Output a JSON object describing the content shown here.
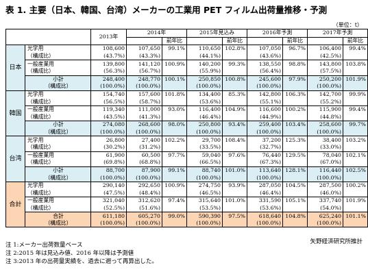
{
  "title": "表 1. 主要（日本、韓国、台湾）メーカーの工業用 PET フィルム出荷量推移・予測",
  "unit": "（単位：t）",
  "columns": {
    "years": [
      "2013年",
      "2014年",
      "2015年見込み",
      "2016年予測",
      "2017年予測"
    ],
    "ratio_label": "前年比"
  },
  "groups": [
    {
      "name": "日本",
      "items": [
        {
          "label": "光学用",
          "share_label": "（構成比）",
          "values": [
            "108,600",
            "107,650",
            "99.1%",
            "110,650",
            "102.8%",
            "107,050",
            "96.7%",
            "106,400",
            "99.4%"
          ],
          "shares": [
            "(43.7%)",
            "(43.3%)",
            "(44.1%)",
            "(43.6%)",
            "(42.5%)"
          ]
        },
        {
          "label": "一般産業用",
          "share_label": "（構成比）",
          "values": [
            "139,800",
            "141,120",
            "100.9%",
            "140,200",
            "99.3%",
            "138,550",
            "98.8%",
            "143,800",
            "103.8%"
          ],
          "shares": [
            "(56.3%)",
            "(56.7%)",
            "(55.9%)",
            "(56.4%)",
            "(57.5%)"
          ]
        },
        {
          "label": "小計",
          "share_label": "（構成比）",
          "values": [
            "248,400",
            "248,770",
            "100.1%",
            "250,850",
            "100.8%",
            "245,600",
            "97.9%",
            "250,200",
            "101.9%"
          ],
          "shares": [
            "(100.0%)",
            "(100.0%)",
            "(100.0%)",
            "(100.0%)",
            "(100.0%)"
          ]
        }
      ]
    },
    {
      "name": "韓国",
      "items": [
        {
          "label": "光学用",
          "share_label": "（構成比）",
          "values": [
            "154,740",
            "157,600",
            "101.8%",
            "134,400",
            "85.3%",
            "142,800",
            "106.3%",
            "142,700",
            "99.9%"
          ],
          "shares": [
            "(56.5%)",
            "(58.7%)",
            "(53.6%)",
            "(55.1%)",
            "(55.2%)"
          ]
        },
        {
          "label": "一般産業用",
          "share_label": "（構成比）",
          "values": [
            "119,340",
            "111,000",
            "93.0%",
            "116,400",
            "104.9%",
            "116,600",
            "100.2%",
            "115,900",
            "99.4%"
          ],
          "shares": [
            "(43.5%)",
            "(41.3%)",
            "(46.4%)",
            "(44.9%)",
            "(44.8%)"
          ]
        },
        {
          "label": "小計",
          "share_label": "（構成比）",
          "values": [
            "274,080",
            "268,600",
            "98.0%",
            "250,800",
            "93.4%",
            "259,400",
            "103.4%",
            "258,600",
            "99.7%"
          ],
          "shares": [
            "(100.0%)",
            "(100.0%)",
            "(100.0%)",
            "(100.0%)",
            "(100.0%)"
          ]
        }
      ]
    },
    {
      "name": "台湾",
      "items": [
        {
          "label": "光学用",
          "share_label": "（構成比）",
          "values": [
            "26,800",
            "27,400",
            "102.2%",
            "29,700",
            "108.4%",
            "37,200",
            "125.3%",
            "38,400",
            "103.2%"
          ],
          "shares": [
            "(30.2%)",
            "(31.2%)",
            "(33.5%)",
            "(32.7%)",
            "(33.0%)"
          ]
        },
        {
          "label": "一般産業用",
          "share_label": "（構成比）",
          "values": [
            "61,900",
            "60,500",
            "97.7%",
            "59,040",
            "97.6%",
            "76,440",
            "129.5%",
            "78,040",
            "102.1%"
          ],
          "shares": [
            "(69.8%)",
            "(68.8%)",
            "(66.5%)",
            "(67.3%)",
            "(67.0%)"
          ]
        },
        {
          "label": "小計",
          "share_label": "（構成比）",
          "values": [
            "88,700",
            "87,900",
            "99.1%",
            "88,740",
            "101.0%",
            "113,640",
            "128.1%",
            "116,440",
            "102.5%"
          ],
          "shares": [
            "(100.0%)",
            "(100.0%)",
            "(100.0%)",
            "(100.0%)",
            "(100.0%)"
          ]
        }
      ]
    },
    {
      "name": "合計",
      "items": [
        {
          "label": "光学用",
          "share_label": "（構成比）",
          "values": [
            "290,140",
            "292,650",
            "100.9%",
            "274,750",
            "93.9%",
            "287,050",
            "104.5%",
            "287,500",
            "100.2%"
          ],
          "shares": [
            "(47.5%)",
            "(48.4%)",
            "(46.5%)",
            "(46.4%)",
            "(46.0%)"
          ]
        },
        {
          "label": "一般産業用",
          "share_label": "（構成比）",
          "values": [
            "321,040",
            "312,620",
            "97.4%",
            "315,640",
            "101.0%",
            "331,590",
            "105.1%",
            "337,740",
            "101.9%"
          ],
          "shares": [
            "(52.5%)",
            "(51.6%)",
            "(53.5%)",
            "(53.6%)",
            "(54.0%)"
          ]
        },
        {
          "label": "合計",
          "share_label": "（構成比）",
          "values": [
            "611,180",
            "605,270",
            "99.0%",
            "590,390",
            "97.5%",
            "618,640",
            "104.8%",
            "625,240",
            "101.1%"
          ],
          "shares": [
            "(100.0%)",
            "(100.0%)",
            "(100.0%)",
            "(100.0%)",
            "(100.0%)"
          ]
        }
      ]
    }
  ],
  "source": "矢野経済研究所推計",
  "notes": [
    "注 1:メーカー出荷数量ベース",
    "注 2:2015 年は見込み値、2016 年以降は予測値",
    "注 3:2013 年の出荷量実績を、過去に遡って再算出した。"
  ]
}
